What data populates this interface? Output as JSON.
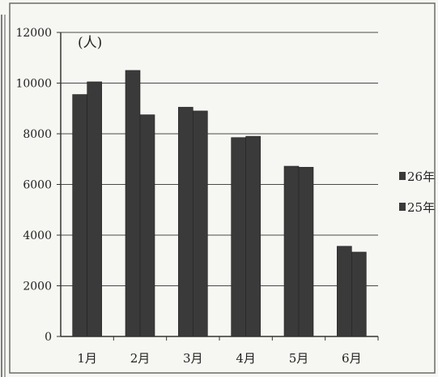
{
  "chart_data": {
    "type": "bar",
    "unit_label": "(人)",
    "categories": [
      "1月",
      "2月",
      "3月",
      "4月",
      "5月",
      "6月"
    ],
    "series": [
      {
        "name": "26年",
        "values": [
          9550,
          10500,
          9050,
          7850,
          6720,
          3560
        ]
      },
      {
        "name": "25年",
        "values": [
          10050,
          8750,
          8900,
          7900,
          6680,
          3330
        ]
      }
    ],
    "y_ticks": [
      "0",
      "2000",
      "4000",
      "6000",
      "8000",
      "10000",
      "12000"
    ],
    "ylim": [
      0,
      12000
    ],
    "grid": true,
    "legend_position": "right",
    "colors": {
      "bar": "#3a3a3a",
      "grid": "#4a4a4a",
      "text": "#222222",
      "background": "#f6f6f2"
    }
  }
}
